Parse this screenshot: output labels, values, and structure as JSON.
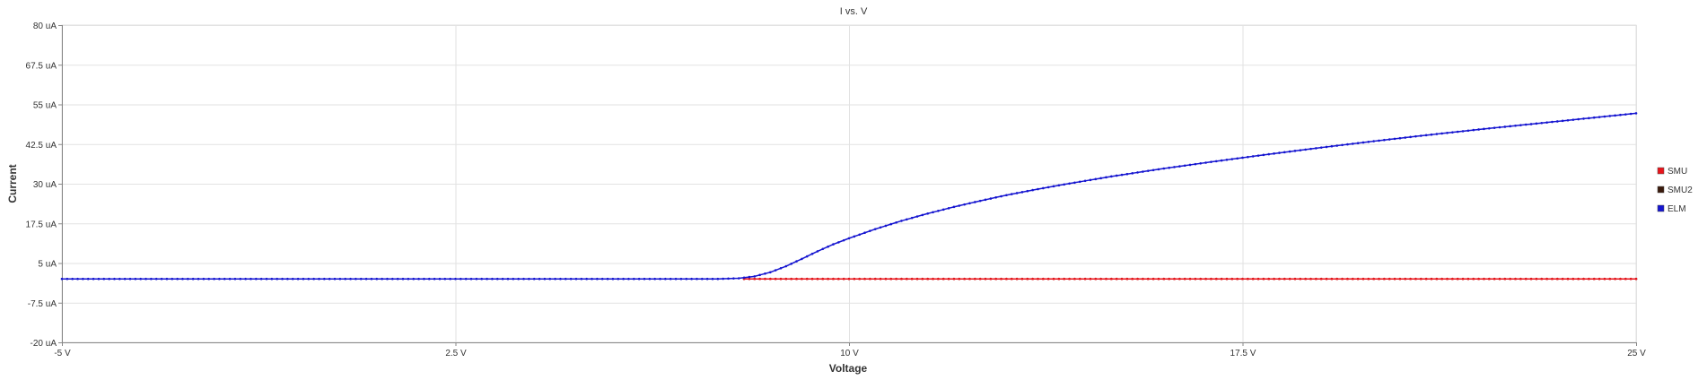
{
  "chart_data": {
    "type": "line",
    "title": "I vs. V",
    "xlabel": "Voltage",
    "ylabel": "Current",
    "x_unit": "V",
    "y_unit": "uA",
    "xlim": [
      -5,
      25
    ],
    "ylim": [
      -20,
      80
    ],
    "x_ticks": [
      -5,
      2.5,
      10,
      17.5,
      25
    ],
    "x_tick_labels": [
      "-5 V",
      "2.5 V",
      "10 V",
      "17.5 V",
      "25 V"
    ],
    "y_ticks": [
      80,
      67.5,
      55,
      42.5,
      30,
      17.5,
      5,
      -7.5,
      -20
    ],
    "y_tick_labels": [
      "80 uA",
      "67.5 uA",
      "55 uA",
      "42.5 uA",
      "30 uA",
      "17.5 uA",
      "5 uA",
      "-7.5 uA",
      "-20 uA"
    ],
    "grid": true,
    "legend_position": "right",
    "series": [
      {
        "name": "SMU",
        "color": "#e8141b",
        "x": [
          -5,
          -2.5,
          0,
          2.5,
          5,
          7.5,
          8,
          9,
          10,
          12.5,
          15,
          17.5,
          20,
          22.5,
          25
        ],
        "y": [
          0,
          0,
          0,
          0,
          0,
          0,
          0,
          0,
          0,
          0,
          0,
          0,
          0,
          0,
          0
        ]
      },
      {
        "name": "SMU2",
        "color": "#3a1a0c",
        "x": [
          -5,
          0,
          5,
          10,
          15,
          20,
          25
        ],
        "y": [
          0,
          0,
          0,
          0,
          0,
          0,
          0
        ]
      },
      {
        "name": "ELM",
        "color": "#1515d0",
        "x": [
          -5,
          -2.5,
          0,
          2.5,
          5,
          7.5,
          7.9,
          8.2,
          8.5,
          8.8,
          9.1,
          9.4,
          9.7,
          10,
          10.5,
          11,
          11.5,
          12,
          12.5,
          13,
          13.5,
          14,
          15,
          16,
          17,
          17.5,
          18,
          19,
          20,
          21,
          22,
          23,
          24,
          25
        ],
        "y": [
          0,
          0,
          0,
          0,
          0,
          0,
          0.2,
          0.8,
          2.1,
          4.0,
          6.3,
          8.7,
          10.9,
          12.8,
          15.7,
          18.3,
          20.6,
          22.7,
          24.6,
          26.4,
          28.0,
          29.5,
          32.3,
          34.8,
          37.1,
          38.2,
          39.3,
          41.4,
          43.4,
          45.3,
          47.1,
          48.8,
          50.5,
          52.2
        ]
      }
    ]
  }
}
